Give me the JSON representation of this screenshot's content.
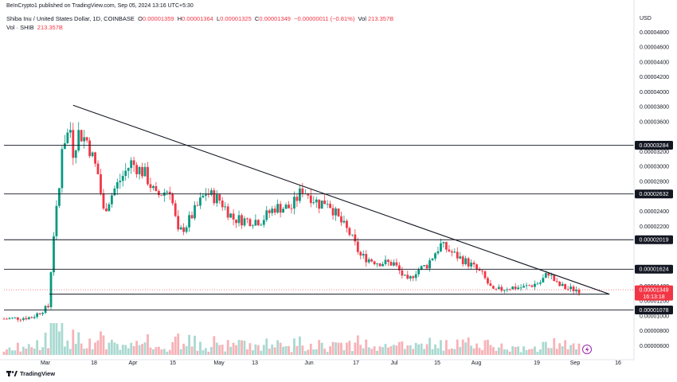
{
  "header": {
    "publisher": "BeInCrypto1 published on TradingView.com, Sep 05, 2024 13:16 UTC+5:30"
  },
  "legend": {
    "symbol": "Shiba Inu / United States Dollar, 1D, COINBASE",
    "open_label": "O",
    "open": "0.00001359",
    "high_label": "H",
    "high": "0.00001364",
    "low_label": "L",
    "low": "0.00001325",
    "close_label": "C",
    "close": "0.00001349",
    "change": "−0.00000011 (−0.81%)",
    "vol_label": "Vol",
    "vol": "213.357B",
    "vol_series": "Vol · SHIB",
    "vol_series_value": "213.357B"
  },
  "footer": {
    "brand": "TradingView"
  },
  "colors": {
    "up": "#089981",
    "down": "#f23645",
    "up_vol": "#a9d9d1",
    "down_vol": "#f7b2b7",
    "line": "#131722",
    "tag_bg": "#131722",
    "price_tag_bg": "#f23645"
  },
  "chart_data": {
    "type": "candlestick",
    "currency": "USD",
    "x_tick_labels": [
      "Mar",
      "18",
      "Apr",
      "15",
      "May",
      "13",
      "Jun",
      "17",
      "Jul",
      "15",
      "Aug",
      "19",
      "Sep",
      "16"
    ],
    "y_tick_labels": [
      "0.00000600",
      "0.00000800",
      "0.00001000",
      "0.00001200",
      "0.00001400",
      "0.00002200",
      "0.00002400",
      "0.00002800",
      "0.00003000",
      "0.00003200",
      "0.00003600",
      "0.00003800",
      "0.00004000",
      "0.00004200",
      "0.00004400",
      "0.00004600",
      "0.00004800"
    ],
    "ylim": [
      5.4e-06,
      4.91e-05
    ],
    "horizontal_levels": [
      "0.00003284",
      "0.00002632",
      "0.00002019",
      "0.00001624",
      "0.00001078"
    ],
    "support_line": 1.29e-05,
    "descending_trendline": {
      "start": {
        "date": "2024-03-06",
        "price": 3.82e-05
      },
      "end": {
        "date": "2024-09-16",
        "price": 1.29e-05
      }
    },
    "last_price": "0.00001349",
    "countdown": "16:13:18",
    "ohlc_series": {
      "date_axis": {
        "start": "2024-02-10",
        "end": "2024-09-22"
      },
      "keypoints": [
        [
          "2024-02-10",
          9.6e-06
        ],
        [
          "2024-02-20",
          9.8e-06
        ],
        [
          "2024-02-26",
          1.12e-05
        ],
        [
          "2024-02-28",
          2.1e-05
        ],
        [
          "2024-03-01",
          2.7e-05
        ],
        [
          "2024-03-02",
          3.3e-05
        ],
        [
          "2024-03-05",
          3.5e-05
        ],
        [
          "2024-03-06",
          3.2e-05
        ],
        [
          "2024-03-08",
          3.45e-05
        ],
        [
          "2024-03-11",
          3.35e-05
        ],
        [
          "2024-03-15",
          2.9e-05
        ],
        [
          "2024-03-17",
          2.4e-05
        ],
        [
          "2024-03-21",
          2.7e-05
        ],
        [
          "2024-03-27",
          3.05e-05
        ],
        [
          "2024-04-01",
          2.9e-05
        ],
        [
          "2024-04-05",
          2.6e-05
        ],
        [
          "2024-04-10",
          2.7e-05
        ],
        [
          "2024-04-13",
          2.1e-05
        ],
        [
          "2024-04-16",
          2.22e-05
        ],
        [
          "2024-04-23",
          2.65e-05
        ],
        [
          "2024-04-28",
          2.55e-05
        ],
        [
          "2024-05-03",
          2.3e-05
        ],
        [
          "2024-05-08",
          2.28e-05
        ],
        [
          "2024-05-13",
          2.28e-05
        ],
        [
          "2024-05-18",
          2.45e-05
        ],
        [
          "2024-05-24",
          2.45e-05
        ],
        [
          "2024-05-28",
          2.7e-05
        ],
        [
          "2024-06-03",
          2.5e-05
        ],
        [
          "2024-06-06",
          2.55e-05
        ],
        [
          "2024-06-10",
          2.3e-05
        ],
        [
          "2024-06-14",
          2.1e-05
        ],
        [
          "2024-06-18",
          1.8e-05
        ],
        [
          "2024-06-24",
          1.72e-05
        ],
        [
          "2024-06-30",
          1.7e-05
        ],
        [
          "2024-07-05",
          1.45e-05
        ],
        [
          "2024-07-08",
          1.6e-05
        ],
        [
          "2024-07-12",
          1.68e-05
        ],
        [
          "2024-07-15",
          1.85e-05
        ],
        [
          "2024-07-17",
          1.95e-05
        ],
        [
          "2024-07-22",
          1.82e-05
        ],
        [
          "2024-07-28",
          1.68e-05
        ],
        [
          "2024-08-01",
          1.55e-05
        ],
        [
          "2024-08-05",
          1.32e-05
        ],
        [
          "2024-08-10",
          1.38e-05
        ],
        [
          "2024-08-16",
          1.38e-05
        ],
        [
          "2024-08-22",
          1.45e-05
        ],
        [
          "2024-08-25",
          1.58e-05
        ],
        [
          "2024-08-28",
          1.42e-05
        ],
        [
          "2024-09-01",
          1.36e-05
        ],
        [
          "2024-09-05",
          1.35e-05
        ]
      ]
    }
  }
}
